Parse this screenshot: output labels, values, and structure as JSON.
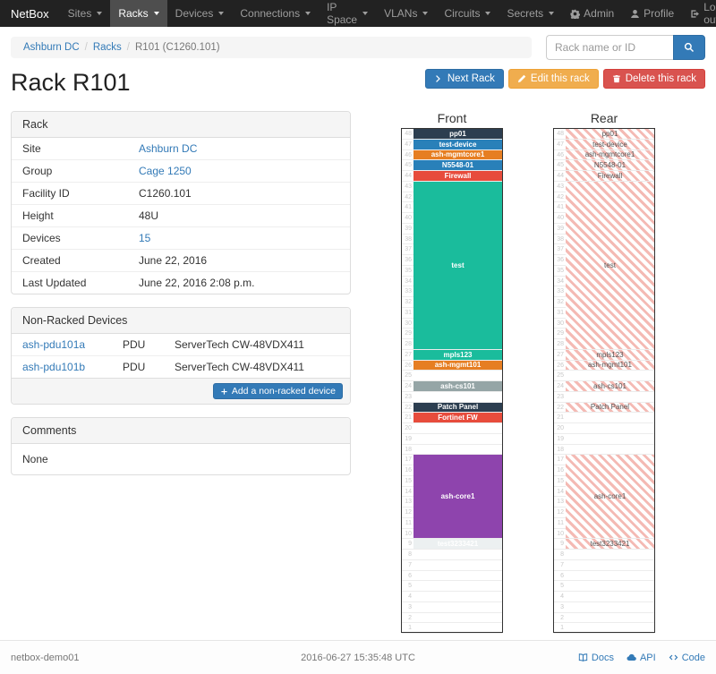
{
  "theme": {
    "link": "#337ab7",
    "primary": "#337ab7",
    "warning": "#f0ad4e",
    "danger": "#d9534f",
    "navbar_bg": "#222222"
  },
  "navbar": {
    "brand": "NetBox",
    "items": [
      {
        "label": "Sites"
      },
      {
        "label": "Racks",
        "active": true
      },
      {
        "label": "Devices"
      },
      {
        "label": "Connections"
      },
      {
        "label": "IP Space"
      },
      {
        "label": "VLANs"
      },
      {
        "label": "Circuits"
      },
      {
        "label": "Secrets"
      }
    ],
    "right_items": [
      {
        "label": "Admin",
        "icon": "gear-icon"
      },
      {
        "label": "Profile",
        "icon": "user-icon"
      },
      {
        "label": "Log out",
        "icon": "logout-icon"
      }
    ]
  },
  "breadcrumb": {
    "links": [
      "Ashburn DC",
      "Racks"
    ],
    "current": "R101 (C1260.101)",
    "separator": "/"
  },
  "search": {
    "placeholder": "Rack name or ID"
  },
  "actions": {
    "next_label": "Next Rack",
    "edit_label": "Edit this rack",
    "delete_label": "Delete this rack"
  },
  "page_title": "Rack R101",
  "rack_panel": {
    "title": "Rack",
    "rows": [
      {
        "label": "Site",
        "value": "Ashburn DC",
        "link": true
      },
      {
        "label": "Group",
        "value": "Cage 1250",
        "link": true
      },
      {
        "label": "Facility ID",
        "value": "C1260.101"
      },
      {
        "label": "Height",
        "value": "48U"
      },
      {
        "label": "Devices",
        "value": "15",
        "link": true
      },
      {
        "label": "Created",
        "value": "June 22, 2016"
      },
      {
        "label": "Last Updated",
        "value": "June 22, 2016 2:08 p.m."
      }
    ]
  },
  "nonracked_panel": {
    "title": "Non-Racked Devices",
    "rows": [
      {
        "name": "ash-pdu101a",
        "role": "PDU",
        "type": "ServerTech CW-48VDX411"
      },
      {
        "name": "ash-pdu101b",
        "role": "PDU",
        "type": "ServerTech CW-48VDX411"
      }
    ],
    "add_label": "Add a non-racked device"
  },
  "comments_panel": {
    "title": "Comments",
    "body": "None"
  },
  "elevations": {
    "front_title": "Front",
    "rear_title": "Rear",
    "top_unit": 48,
    "bottom_unit": 1,
    "devices": [
      {
        "label": "pp01",
        "unit": 48,
        "height": 1,
        "color": "#2c3e50"
      },
      {
        "label": "test-device",
        "unit": 47,
        "height": 1,
        "color": "#2980b9"
      },
      {
        "label": "ash-mgmtcore1",
        "unit": 46,
        "height": 1,
        "color": "#e67e22"
      },
      {
        "label": "N5548-01",
        "unit": 45,
        "height": 1,
        "color": "#2980b9"
      },
      {
        "label": "Firewall",
        "unit": 44,
        "height": 1,
        "color": "#e74c3c"
      },
      {
        "label": "test",
        "unit": 43,
        "height": 16,
        "color": "#1abc9c"
      },
      {
        "label": "mpls123",
        "unit": 27,
        "height": 1,
        "color": "#1abc9c"
      },
      {
        "label": "ash-mgmt101",
        "unit": 26,
        "height": 1,
        "color": "#e67e22"
      },
      {
        "label": "ash-cs101",
        "unit": 24,
        "height": 1,
        "color": "#95a5a6"
      },
      {
        "label": "Patch Panel",
        "unit": 22,
        "height": 1,
        "color": "#2c3e50"
      },
      {
        "label": "Fortinet FW",
        "unit": 21,
        "height": 1,
        "color": "#e74c3c",
        "front_only": true
      },
      {
        "label": "ash-core1",
        "unit": 17,
        "height": 8,
        "color": "#8e44ad"
      },
      {
        "label": "test3233421",
        "unit": 9,
        "height": 1,
        "color": "#ecf0f1",
        "text_color": "#ffffff"
      }
    ]
  },
  "footer": {
    "hostname": "netbox-demo01",
    "timestamp": "2016-06-27 15:35:48 UTC",
    "links": [
      {
        "label": "Docs",
        "icon": "book-icon"
      },
      {
        "label": "API",
        "icon": "cloud-icon"
      },
      {
        "label": "Code",
        "icon": "code-icon"
      }
    ]
  }
}
